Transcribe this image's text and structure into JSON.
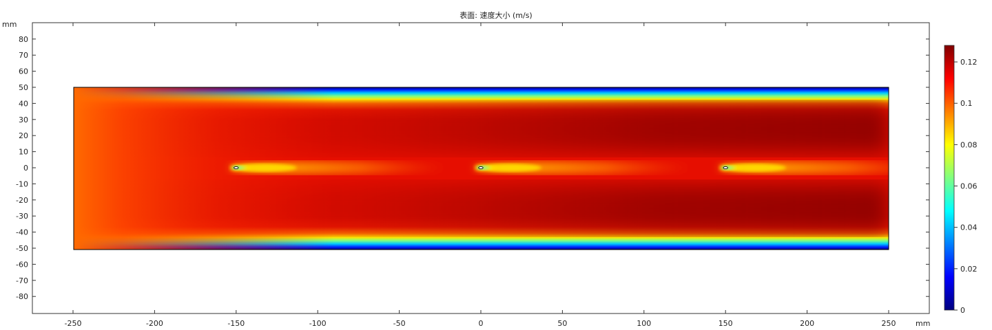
{
  "chart_data": {
    "type": "heatmap",
    "title": "表面: 速度大小 (m/s)",
    "xlabel": "mm",
    "ylabel": "mm",
    "xlim": [
      -275,
      275
    ],
    "ylim": [
      -90,
      90
    ],
    "xticks": [
      -250,
      -200,
      -150,
      -100,
      -50,
      0,
      50,
      100,
      150,
      200,
      250
    ],
    "yticks": [
      80,
      70,
      60,
      50,
      40,
      30,
      20,
      10,
      0,
      -10,
      -20,
      -30,
      -40,
      -50,
      -60,
      -70,
      -80
    ],
    "domain": {
      "x": [
        -250,
        250
      ],
      "y": [
        -50,
        50
      ]
    },
    "obstacles_x": [
      -150,
      0,
      150
    ],
    "obstacles_y": 0,
    "colorbar": {
      "range": [
        0,
        0.128
      ],
      "ticks": [
        0,
        0.02,
        0.04,
        0.06,
        0.08,
        0.1,
        0.12
      ],
      "colormap": "jet"
    },
    "colors": {
      "frame": "#000000",
      "axes_frame": "#333333"
    }
  }
}
